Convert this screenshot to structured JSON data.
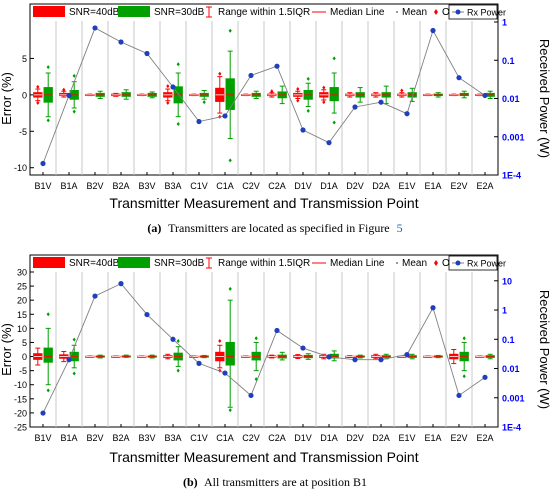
{
  "colors": {
    "snr40": "#ff0000",
    "snr30": "#00a000",
    "median": "#ff0000",
    "outlier": "#ff0000",
    "rx_point": "#1f3fbf",
    "rx_line": "#808080",
    "right_axis": "#0000ff"
  },
  "legend": {
    "snr40": "SNR=40dB",
    "snr30": "SNR=30dB",
    "range": "Range within 1.5IQR",
    "median": "Median Line",
    "mean": "Mean",
    "outliers": "Outliers",
    "rx": "Rx Power"
  },
  "captions": {
    "a_label": "(a)",
    "a_text": "Transmitters are located as specified in Figure",
    "a_ref": "5",
    "b_label": "(b)",
    "b_text": "All transmitters are at position B1"
  },
  "chart_data": [
    {
      "type": "box",
      "panel": "a",
      "xlabel": "Transmitter Measurement and Transmission Point",
      "ylabel": "Error (%)",
      "y2label": "Received Power (W)",
      "categories": [
        "B1V",
        "B1A",
        "B2V",
        "B2A",
        "B3V",
        "B3A",
        "C1V",
        "C1A",
        "C2V",
        "C2A",
        "D1V",
        "D1A",
        "D2V",
        "D2A",
        "E1V",
        "E1A",
        "E2V",
        "E2A"
      ],
      "ylim": [
        -11,
        10
      ],
      "yticks": [
        -10,
        -5,
        0,
        5
      ],
      "y2_scale": "log",
      "y2lim": [
        0.0001,
        1
      ],
      "y2ticks": [
        "1E-4",
        "0.001",
        "0.01",
        "0.1",
        "1"
      ],
      "y2tick_values": [
        0.0001,
        0.001,
        0.01,
        0.1,
        1
      ],
      "series": [
        {
          "name": "SNR=40dB",
          "boxes": [
            {
              "q1": -0.3,
              "median": 0,
              "q3": 0.3,
              "wl": -0.8,
              "wh": 0.8,
              "outliers": [
                -1.1,
                1.1
              ]
            },
            {
              "q1": -0.1,
              "median": 0,
              "q3": 0.2,
              "wl": -0.3,
              "wh": 0.5,
              "outliers": [
                0.7
              ]
            },
            {
              "q1": -0.05,
              "median": 0,
              "q3": 0.05,
              "wl": -0.1,
              "wh": 0.1,
              "outliers": []
            },
            {
              "q1": -0.1,
              "median": 0,
              "q3": 0.1,
              "wl": -0.2,
              "wh": 0.2,
              "outliers": []
            },
            {
              "q1": -0.05,
              "median": 0,
              "q3": 0.05,
              "wl": -0.1,
              "wh": 0.1,
              "outliers": []
            },
            {
              "q1": -0.3,
              "median": 0,
              "q3": 0.3,
              "wl": -0.8,
              "wh": 0.8,
              "outliers": [
                -1.1,
                1.2
              ]
            },
            {
              "q1": -0.05,
              "median": 0,
              "q3": 0.05,
              "wl": -0.1,
              "wh": 0.1,
              "outliers": []
            },
            {
              "q1": -0.9,
              "median": 0,
              "q3": 0.9,
              "wl": -2.5,
              "wh": 2.5,
              "outliers": [
                -3,
                2.9
              ]
            },
            {
              "q1": -0.05,
              "median": 0,
              "q3": 0.05,
              "wl": -0.1,
              "wh": 0.1,
              "outliers": []
            },
            {
              "q1": -0.1,
              "median": 0,
              "q3": 0.1,
              "wl": -0.3,
              "wh": 0.3,
              "outliers": [
                0.5
              ]
            },
            {
              "q1": -0.2,
              "median": 0,
              "q3": 0.2,
              "wl": -0.5,
              "wh": 0.5,
              "outliers": [
                -0.8,
                0.8
              ]
            },
            {
              "q1": -0.3,
              "median": 0,
              "q3": 0.3,
              "wl": -0.7,
              "wh": 0.7,
              "outliers": [
                -1.0,
                1.0
              ]
            },
            {
              "q1": -0.1,
              "median": 0,
              "q3": 0.1,
              "wl": -0.3,
              "wh": 0.3,
              "outliers": []
            },
            {
              "q1": -0.1,
              "median": 0,
              "q3": 0.1,
              "wl": -0.3,
              "wh": 0.3,
              "outliers": []
            },
            {
              "q1": -0.1,
              "median": 0,
              "q3": 0.1,
              "wl": -0.3,
              "wh": 0.3,
              "outliers": [
                0.6
              ]
            },
            {
              "q1": -0.05,
              "median": 0,
              "q3": 0.05,
              "wl": -0.1,
              "wh": 0.1,
              "outliers": []
            },
            {
              "q1": -0.05,
              "median": 0,
              "q3": 0.05,
              "wl": -0.1,
              "wh": 0.1,
              "outliers": []
            },
            {
              "q1": -0.05,
              "median": 0,
              "q3": 0.05,
              "wl": -0.1,
              "wh": 0.1,
              "outliers": []
            }
          ]
        },
        {
          "name": "SNR=30dB",
          "boxes": [
            {
              "q1": -1.0,
              "median": 0,
              "q3": 1.0,
              "wl": -3,
              "wh": 3,
              "outliers": [
                -3.5,
                3.8
              ]
            },
            {
              "q1": -0.6,
              "median": 0,
              "q3": 0.6,
              "wl": -1.8,
              "wh": 1.8,
              "outliers": [
                -2.3,
                2.6
              ]
            },
            {
              "q1": -0.2,
              "median": 0,
              "q3": 0.2,
              "wl": -0.5,
              "wh": 0.5,
              "outliers": []
            },
            {
              "q1": -0.2,
              "median": 0,
              "q3": 0.3,
              "wl": -0.6,
              "wh": 0.7,
              "outliers": []
            },
            {
              "q1": -0.2,
              "median": 0,
              "q3": 0.2,
              "wl": -0.4,
              "wh": 0.4,
              "outliers": []
            },
            {
              "q1": -1.1,
              "median": 0,
              "q3": 1.1,
              "wl": -3,
              "wh": 3,
              "outliers": [
                -4,
                4.2
              ]
            },
            {
              "q1": -0.2,
              "median": 0,
              "q3": 0.2,
              "wl": -0.6,
              "wh": 0.6,
              "outliers": [
                -1
              ]
            },
            {
              "q1": -2.0,
              "median": 0,
              "q3": 2.2,
              "wl": -6,
              "wh": 6,
              "outliers": [
                -9,
                8.8
              ]
            },
            {
              "q1": -0.2,
              "median": 0,
              "q3": 0.2,
              "wl": -0.5,
              "wh": 0.5,
              "outliers": []
            },
            {
              "q1": -0.4,
              "median": 0,
              "q3": 0.4,
              "wl": -1.2,
              "wh": 1.2,
              "outliers": []
            },
            {
              "q1": -0.6,
              "median": 0,
              "q3": 0.6,
              "wl": -1.6,
              "wh": 1.6,
              "outliers": [
                -2.2,
                2.2
              ]
            },
            {
              "q1": -0.8,
              "median": 0,
              "q3": 1.0,
              "wl": -2.5,
              "wh": 3,
              "outliers": [
                -3.8,
                5
              ]
            },
            {
              "q1": -0.3,
              "median": 0,
              "q3": 0.3,
              "wl": -1,
              "wh": 1,
              "outliers": []
            },
            {
              "q1": -0.3,
              "median": 0,
              "q3": 0.3,
              "wl": -1.2,
              "wh": 1.2,
              "outliers": []
            },
            {
              "q1": -0.3,
              "median": 0,
              "q3": 0.3,
              "wl": -0.9,
              "wh": 0.9,
              "outliers": []
            },
            {
              "q1": -0.1,
              "median": 0,
              "q3": 0.1,
              "wl": -0.3,
              "wh": 0.3,
              "outliers": []
            },
            {
              "q1": -0.1,
              "median": 0,
              "q3": 0.2,
              "wl": -0.4,
              "wh": 0.5,
              "outliers": []
            },
            {
              "q1": -0.2,
              "median": 0,
              "q3": 0.2,
              "wl": -0.5,
              "wh": 0.5,
              "outliers": []
            }
          ]
        },
        {
          "name": "Rx Power",
          "values": [
            0.0002,
            0.012,
            0.7,
            0.3,
            0.15,
            0.02,
            0.0025,
            0.0035,
            0.04,
            0.07,
            0.0015,
            0.0007,
            0.006,
            0.008,
            0.004,
            0.6,
            0.035,
            0.012
          ]
        }
      ]
    },
    {
      "type": "box",
      "panel": "b",
      "xlabel": "Transmitter Measurement and Transmission Point",
      "ylabel": "Error (%)",
      "y2label": "Received Power (W)",
      "categories": [
        "B1V",
        "B1A",
        "B2V",
        "B2A",
        "B3V",
        "B3A",
        "C1V",
        "C1A",
        "C2V",
        "C2A",
        "D1V",
        "D1A",
        "D2V",
        "D2A",
        "E1V",
        "E1A",
        "E2V",
        "E2A"
      ],
      "ylim": [
        -25,
        30
      ],
      "yticks": [
        -25,
        -20,
        -15,
        -10,
        -5,
        0,
        5,
        10,
        15,
        20,
        25,
        30
      ],
      "y2_scale": "log",
      "y2lim": [
        0.0001,
        20
      ],
      "y2ticks": [
        "1E-4",
        "0.001",
        "0.01",
        "0.1",
        "1",
        "10"
      ],
      "y2tick_values": [
        0.0001,
        0.001,
        0.01,
        0.1,
        1,
        10
      ],
      "series": [
        {
          "name": "SNR=40dB",
          "boxes": [
            {
              "q1": -1,
              "median": 0,
              "q3": 1,
              "wl": -3,
              "wh": 3,
              "outliers": []
            },
            {
              "q1": -0.6,
              "median": 0,
              "q3": 0.6,
              "wl": -1.8,
              "wh": 1.8,
              "outliers": []
            },
            {
              "q1": -0.1,
              "median": 0,
              "q3": 0.1,
              "wl": -0.2,
              "wh": 0.2,
              "outliers": []
            },
            {
              "q1": -0.1,
              "median": 0,
              "q3": 0.1,
              "wl": -0.2,
              "wh": 0.2,
              "outliers": []
            },
            {
              "q1": -0.1,
              "median": 0,
              "q3": 0.1,
              "wl": -0.2,
              "wh": 0.2,
              "outliers": []
            },
            {
              "q1": -0.3,
              "median": 0,
              "q3": 0.3,
              "wl": -0.8,
              "wh": 0.8,
              "outliers": []
            },
            {
              "q1": -0.1,
              "median": 0,
              "q3": 0.1,
              "wl": -0.2,
              "wh": 0.2,
              "outliers": []
            },
            {
              "q1": -1.5,
              "median": 0,
              "q3": 1.5,
              "wl": -4,
              "wh": 4,
              "outliers": [
                -5,
                5.5
              ]
            },
            {
              "q1": -0.1,
              "median": 0,
              "q3": 0.1,
              "wl": -0.2,
              "wh": 0.2,
              "outliers": []
            },
            {
              "q1": -0.2,
              "median": 0,
              "q3": 0.2,
              "wl": -0.5,
              "wh": 0.5,
              "outliers": []
            },
            {
              "q1": -0.3,
              "median": 0,
              "q3": 0.3,
              "wl": -0.7,
              "wh": 0.7,
              "outliers": []
            },
            {
              "q1": -0.3,
              "median": 0,
              "q3": 0.3,
              "wl": -0.8,
              "wh": 0.8,
              "outliers": []
            },
            {
              "q1": -0.1,
              "median": 0,
              "q3": 0.1,
              "wl": -0.3,
              "wh": 0.3,
              "outliers": []
            },
            {
              "q1": -0.3,
              "median": 0,
              "q3": 0.3,
              "wl": -0.8,
              "wh": 0.8,
              "outliers": []
            },
            {
              "q1": -0.1,
              "median": 0,
              "q3": 0.1,
              "wl": -0.2,
              "wh": 0.2,
              "outliers": []
            },
            {
              "q1": -0.1,
              "median": 0,
              "q3": 0.1,
              "wl": -0.2,
              "wh": 0.2,
              "outliers": []
            },
            {
              "q1": -0.8,
              "median": 0,
              "q3": 0.8,
              "wl": -2.5,
              "wh": 2.5,
              "outliers": []
            },
            {
              "q1": -0.1,
              "median": 0,
              "q3": 0.1,
              "wl": -0.2,
              "wh": 0.2,
              "outliers": []
            }
          ]
        },
        {
          "name": "SNR=30dB",
          "boxes": [
            {
              "q1": -2,
              "median": 0,
              "q3": 3,
              "wl": -10,
              "wh": 10,
              "outliers": [
                -12,
                15
              ]
            },
            {
              "q1": -1.5,
              "median": 0,
              "q3": 1.5,
              "wl": -4,
              "wh": 4,
              "outliers": [
                -6,
                6
              ]
            },
            {
              "q1": -0.2,
              "median": 0,
              "q3": 0.2,
              "wl": -0.5,
              "wh": 0.5,
              "outliers": []
            },
            {
              "q1": -0.1,
              "median": 0,
              "q3": 0.2,
              "wl": -0.3,
              "wh": 0.5,
              "outliers": []
            },
            {
              "q1": -0.2,
              "median": 0,
              "q3": 0.2,
              "wl": -0.5,
              "wh": 0.5,
              "outliers": []
            },
            {
              "q1": -1.2,
              "median": 0,
              "q3": 1.2,
              "wl": -3.5,
              "wh": 3.5,
              "outliers": [
                -5,
                5.5
              ]
            },
            {
              "q1": -0.2,
              "median": 0,
              "q3": 0.2,
              "wl": -0.4,
              "wh": 0.4,
              "outliers": []
            },
            {
              "q1": -3,
              "median": 0,
              "q3": 5,
              "wl": -18,
              "wh": 20,
              "outliers": [
                -19,
                24
              ]
            },
            {
              "q1": -1.2,
              "median": 0,
              "q3": 1.5,
              "wl": -5,
              "wh": 5,
              "outliers": [
                -8,
                6.5
              ]
            },
            {
              "q1": -0.5,
              "median": 0,
              "q3": 0.5,
              "wl": -1.2,
              "wh": 1.5,
              "outliers": []
            },
            {
              "q1": -0.4,
              "median": 0,
              "q3": 0.4,
              "wl": -1,
              "wh": 1,
              "outliers": []
            },
            {
              "q1": -0.5,
              "median": 0,
              "q3": 0.8,
              "wl": -1.5,
              "wh": 2,
              "outliers": []
            },
            {
              "q1": -0.2,
              "median": 0,
              "q3": 0.2,
              "wl": -0.5,
              "wh": 0.5,
              "outliers": []
            },
            {
              "q1": -0.3,
              "median": 0,
              "q3": 0.3,
              "wl": -0.8,
              "wh": 0.8,
              "outliers": []
            },
            {
              "q1": -0.3,
              "median": 0,
              "q3": 0.3,
              "wl": -0.8,
              "wh": 0.8,
              "outliers": []
            },
            {
              "q1": -0.2,
              "median": 0,
              "q3": 0.2,
              "wl": -0.4,
              "wh": 0.4,
              "outliers": []
            },
            {
              "q1": -1.5,
              "median": 0,
              "q3": 1.5,
              "wl": -5,
              "wh": 5,
              "outliers": [
                -7,
                6.5
              ]
            },
            {
              "q1": -0.3,
              "median": 0,
              "q3": 0.3,
              "wl": -0.8,
              "wh": 0.8,
              "outliers": []
            }
          ]
        },
        {
          "name": "Rx Power",
          "values": [
            0.0003,
            0.02,
            3,
            8,
            0.7,
            0.1,
            0.015,
            0.007,
            0.0012,
            0.2,
            0.05,
            0.025,
            0.02,
            0.02,
            0.03,
            1.2,
            0.0012,
            0.005
          ]
        }
      ]
    }
  ]
}
